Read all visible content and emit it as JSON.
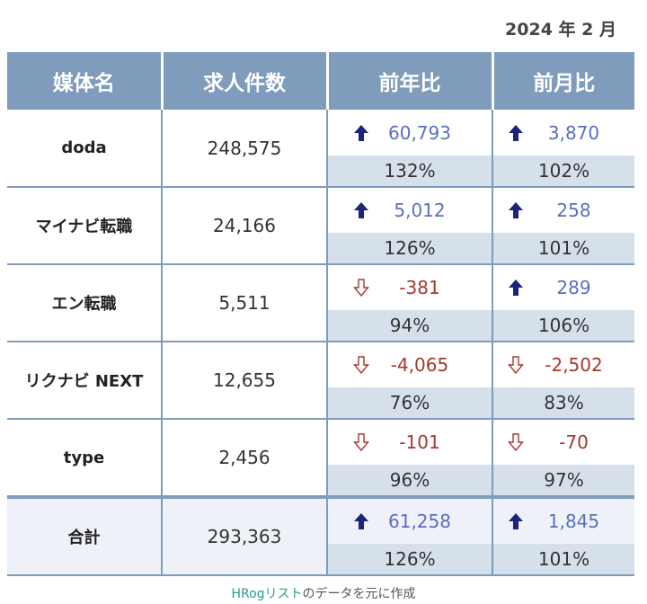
{
  "date": "2024 年 2 月",
  "headers": [
    "媒体名",
    "求人件数",
    "前年比",
    "前月比"
  ],
  "rows": [
    {
      "name": "doda",
      "jobs": "248,575",
      "yoy": {
        "dir": "up",
        "change": "60,793",
        "ratio": "132%"
      },
      "mom": {
        "dir": "up",
        "change": "3,870",
        "ratio": "102%"
      }
    },
    {
      "name": "マイナビ転職",
      "jobs": "24,166",
      "yoy": {
        "dir": "up",
        "change": "5,012",
        "ratio": "126%"
      },
      "mom": {
        "dir": "up",
        "change": "258",
        "ratio": "101%"
      }
    },
    {
      "name": "エン転職",
      "jobs": "5,511",
      "yoy": {
        "dir": "down",
        "change": "-381",
        "ratio": "94%"
      },
      "mom": {
        "dir": "up",
        "change": "289",
        "ratio": "106%"
      }
    },
    {
      "name": "リクナビ NEXT",
      "jobs": "12,655",
      "yoy": {
        "dir": "down",
        "change": "-4,065",
        "ratio": "76%"
      },
      "mom": {
        "dir": "down",
        "change": "-2,502",
        "ratio": "83%"
      }
    },
    {
      "name": "type",
      "jobs": "2,456",
      "yoy": {
        "dir": "down",
        "change": "-101",
        "ratio": "96%"
      },
      "mom": {
        "dir": "down",
        "change": "-70",
        "ratio": "97%"
      }
    }
  ],
  "total": {
    "name": "合計",
    "jobs": "293,363",
    "yoy": {
      "dir": "up",
      "change": "61,258",
      "ratio": "126%"
    },
    "mom": {
      "dir": "up",
      "change": "1,845",
      "ratio": "101%"
    }
  },
  "source": {
    "brand": "HRogリスト",
    "rest": "のデータを元に作成"
  },
  "colors": {
    "header": "#7f9cbc",
    "shade": "#d6e0eb",
    "up": "#1a237e",
    "down": "#a33a2e"
  },
  "icons": {
    "up": "up-arrow-icon",
    "down": "down-arrow-icon"
  }
}
